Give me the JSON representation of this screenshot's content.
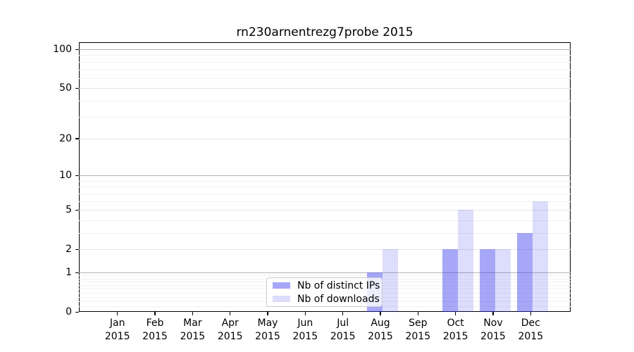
{
  "chart_data": {
    "type": "bar",
    "title": "rn230arnentrezg7probe 2015",
    "categories": [
      "Jan",
      "Feb",
      "Mar",
      "Apr",
      "May",
      "Jun",
      "Jul",
      "Aug",
      "Sep",
      "Oct",
      "Nov",
      "Dec"
    ],
    "category_year": "2015",
    "series": [
      {
        "name": "Nb of distinct IPs",
        "values": [
          0,
          0,
          0,
          0,
          0,
          0,
          0,
          1,
          0,
          2,
          2,
          3
        ],
        "color": "rgba(51,51,238,0.43)"
      },
      {
        "name": "Nb of downloads",
        "values": [
          0,
          0,
          0,
          0,
          0,
          0,
          0,
          2,
          0,
          5,
          2,
          6
        ],
        "color": "rgba(51,51,238,0.17)"
      }
    ],
    "yticks": [
      0,
      1,
      2,
      5,
      10,
      20,
      50,
      100
    ],
    "major_yticks": [
      1,
      10,
      100
    ],
    "scale": "log1p",
    "ylim": [
      0,
      113
    ],
    "xlabel": "",
    "ylabel": "",
    "grid": true,
    "legend_position": "lower-center"
  }
}
